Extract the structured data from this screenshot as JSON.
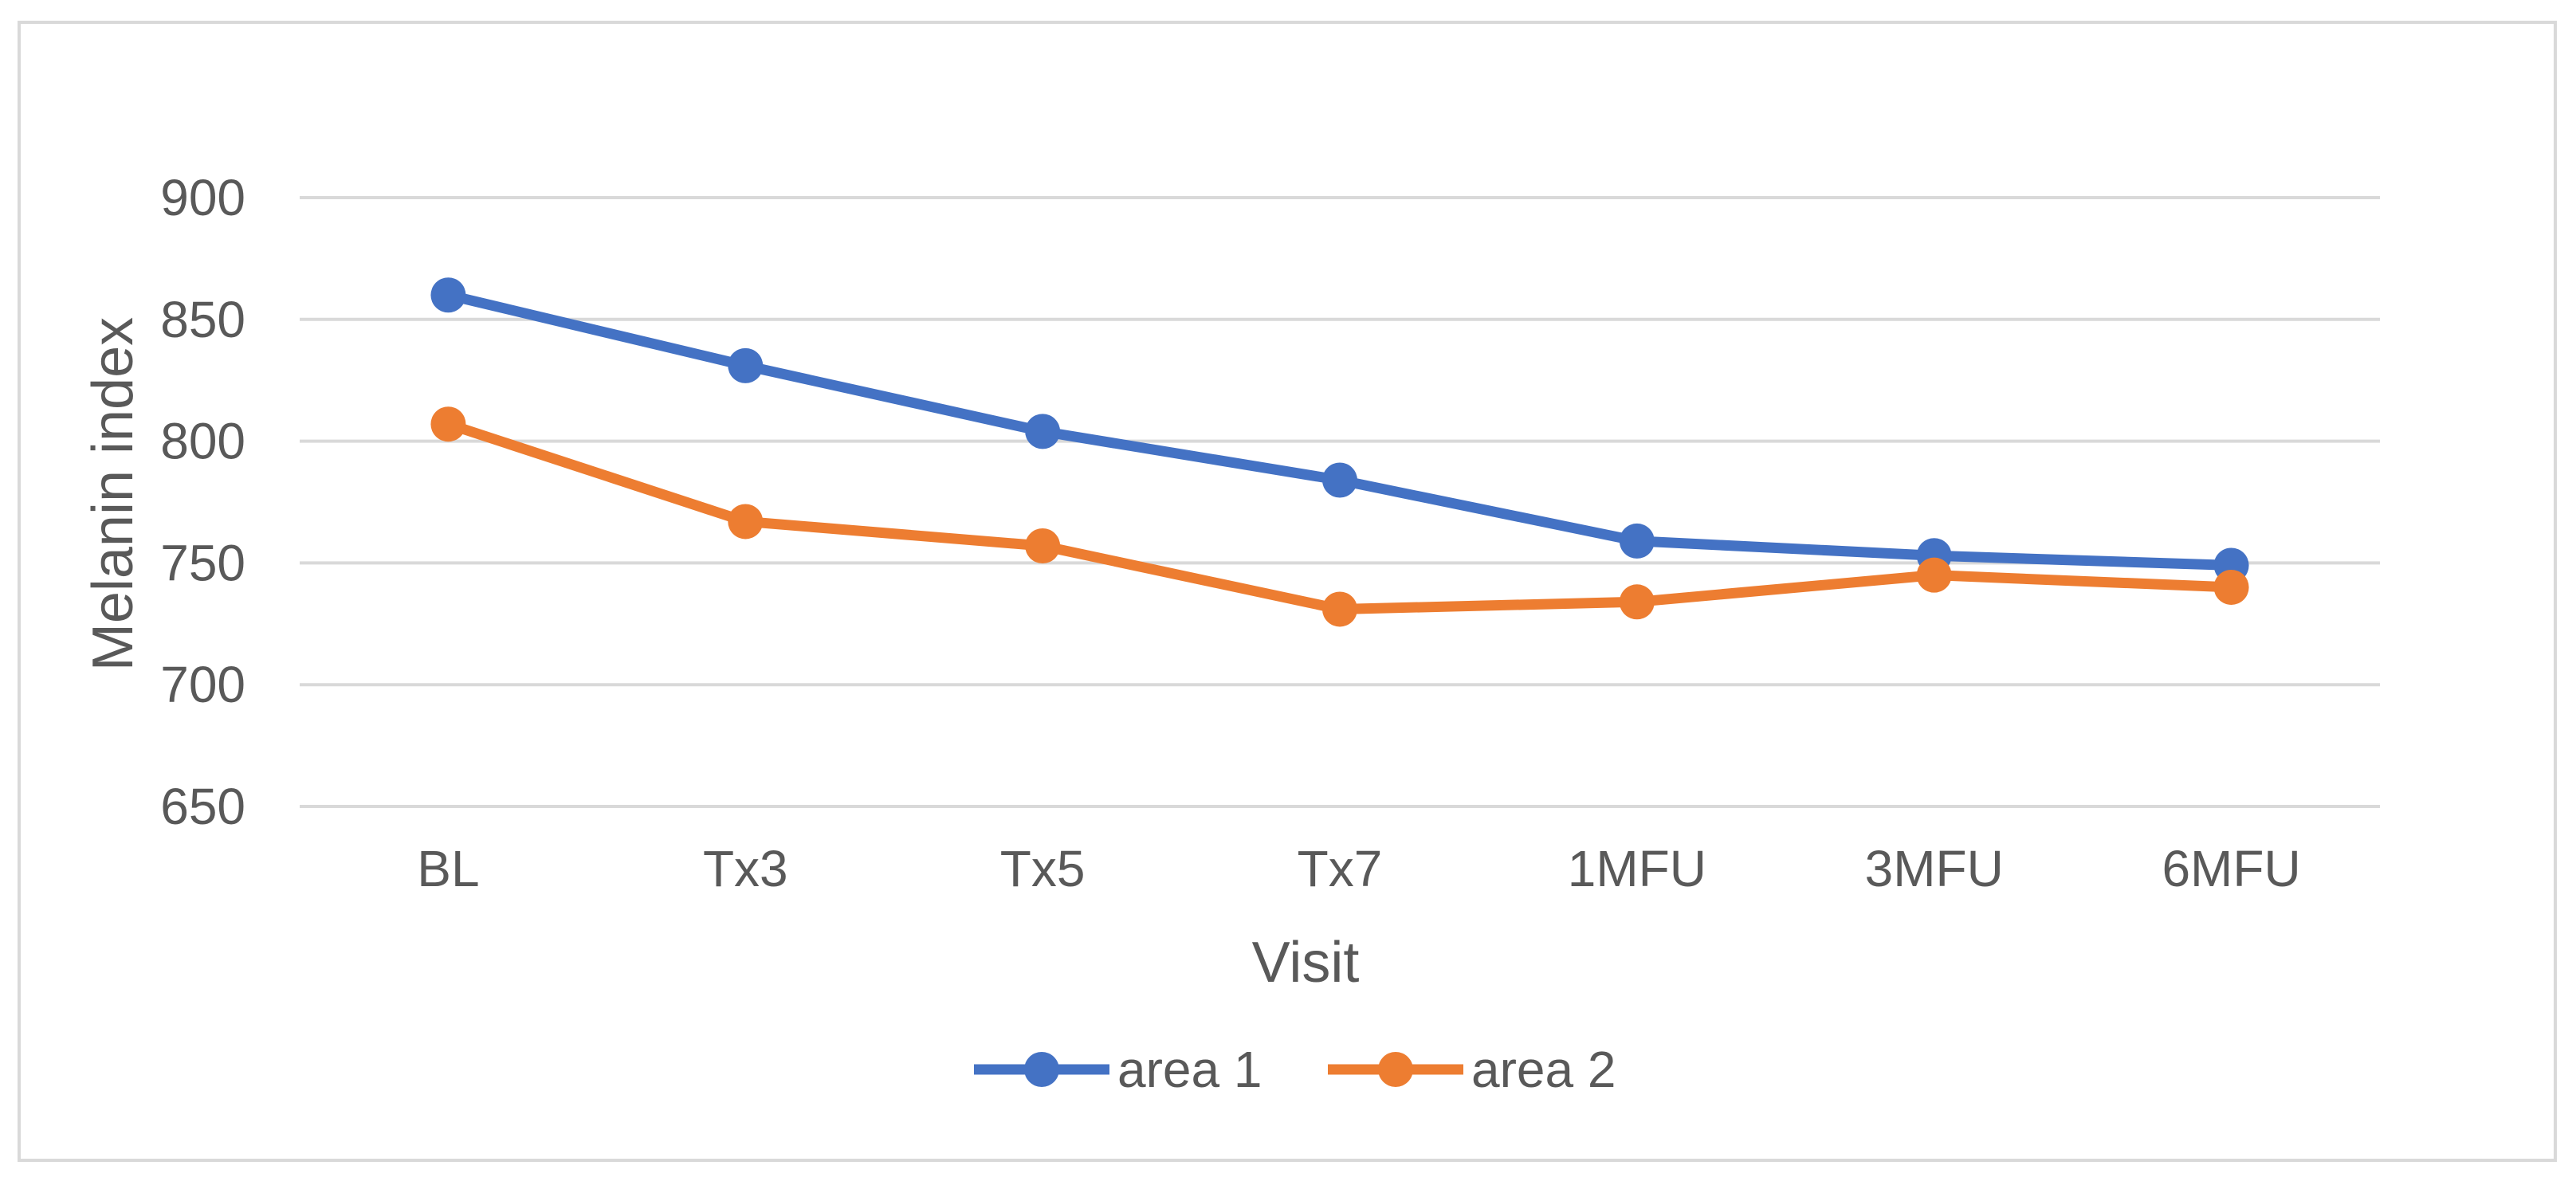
{
  "chart_data": {
    "type": "line",
    "title": "",
    "xlabel": "Visit",
    "ylabel": "Melanin index",
    "ylim": [
      650,
      900
    ],
    "yticks": [
      650,
      700,
      750,
      800,
      850,
      900
    ],
    "categories": [
      "BL",
      "Tx3",
      "Tx5",
      "Tx7",
      "1MFU",
      "3MFU",
      "6MFU"
    ],
    "grid": true,
    "legend_position": "bottom",
    "series": [
      {
        "name": "area 1",
        "color": "#4472c4",
        "marker": "circle",
        "values": [
          860,
          831,
          804,
          784,
          759,
          753,
          749
        ]
      },
      {
        "name": "area 2",
        "color": "#ed7d31",
        "marker": "circle",
        "values": [
          807,
          767,
          757,
          731,
          734,
          745,
          740
        ]
      }
    ]
  }
}
